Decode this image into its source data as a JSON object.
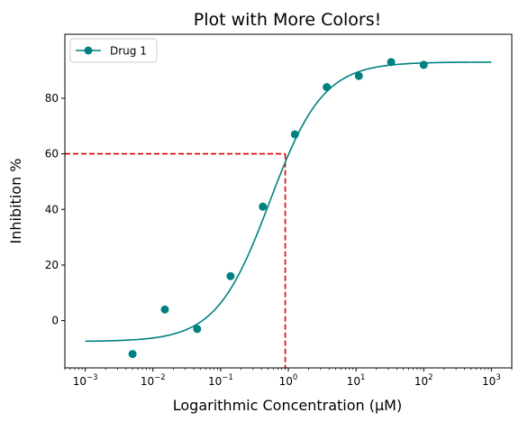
{
  "chart_data": {
    "type": "line",
    "title": "Plot with More Colors!",
    "xlabel": "Logarithmic Concentration (µM)",
    "ylabel": "Inhibition %",
    "xscale": "log",
    "xlim": [
      0.0005,
      2000
    ],
    "ylim": [
      -17,
      103
    ],
    "x_ticks": [
      {
        "base": "10",
        "exp": "−3",
        "value": 0.001
      },
      {
        "base": "10",
        "exp": "−2",
        "value": 0.01
      },
      {
        "base": "10",
        "exp": "−1",
        "value": 0.1
      },
      {
        "base": "10",
        "exp": "0",
        "value": 1
      },
      {
        "base": "10",
        "exp": "1",
        "value": 10
      },
      {
        "base": "10",
        "exp": "2",
        "value": 100
      },
      {
        "base": "10",
        "exp": "3",
        "value": 1000
      }
    ],
    "y_ticks": [
      "0",
      "20",
      "40",
      "60",
      "80"
    ],
    "grid": false,
    "legend_position": "top-left",
    "series": [
      {
        "name": "Drug 1",
        "color": "#008080",
        "x": [
          0.005,
          0.015,
          0.045,
          0.14,
          0.42,
          1.25,
          3.7,
          11,
          33,
          100
        ],
        "y": [
          -12,
          4,
          -3,
          16,
          41,
          67,
          84,
          88,
          93,
          92
        ]
      }
    ],
    "fit_curve": {
      "color": "#008080",
      "bottom": -7.5,
      "top": 93,
      "ic50": 0.53,
      "hill": 1.1,
      "x_range": [
        0.001,
        1000
      ]
    },
    "reference_lines": {
      "color": "#e00000",
      "x": 0.9,
      "y": 60
    }
  }
}
